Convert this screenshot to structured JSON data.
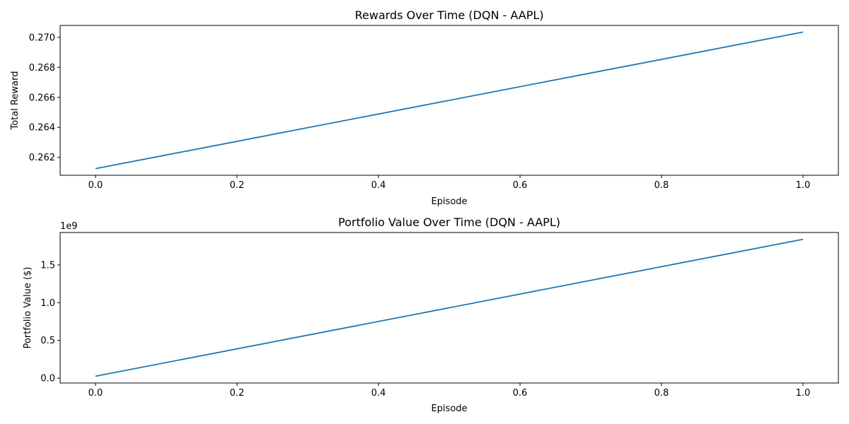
{
  "chart_data": [
    {
      "type": "line",
      "title": "Rewards Over Time (DQN - AAPL)",
      "xlabel": "Episode",
      "ylabel": "Total Reward",
      "xlim": [
        -0.05,
        1.05
      ],
      "ylim": [
        0.26081,
        0.27079
      ],
      "xticks": [
        0.0,
        0.2,
        0.4,
        0.6,
        0.8,
        1.0
      ],
      "xtick_labels": [
        "0.0",
        "0.2",
        "0.4",
        "0.6",
        "0.8",
        "1.0"
      ],
      "yticks": [
        0.262,
        0.264,
        0.266,
        0.268,
        0.27
      ],
      "ytick_labels": [
        "0.262",
        "0.264",
        "0.266",
        "0.268",
        "0.270"
      ],
      "offset_text": "",
      "grid": false,
      "series": [
        {
          "x": [
            0.0,
            1.0
          ],
          "values": [
            0.26125,
            0.27035
          ]
        }
      ],
      "color": "#1f77b4"
    },
    {
      "type": "line",
      "title": "Portfolio Value Over Time (DQN - AAPL)",
      "xlabel": "Episode",
      "ylabel": "Portfolio Value ($)",
      "xlim": [
        -0.05,
        1.05
      ],
      "ylim": [
        -0.065,
        1.93
      ],
      "xticks": [
        0.0,
        0.2,
        0.4,
        0.6,
        0.8,
        1.0
      ],
      "xtick_labels": [
        "0.0",
        "0.2",
        "0.4",
        "0.6",
        "0.8",
        "1.0"
      ],
      "yticks": [
        0.0,
        0.5,
        1.0,
        1.5
      ],
      "ytick_labels": [
        "0.0",
        "0.5",
        "1.0",
        "1.5"
      ],
      "offset_text": "1e9",
      "grid": false,
      "series": [
        {
          "x": [
            0.0,
            1.0
          ],
          "values": [
            0.025,
            1.84
          ]
        }
      ],
      "color": "#1f77b4"
    }
  ]
}
